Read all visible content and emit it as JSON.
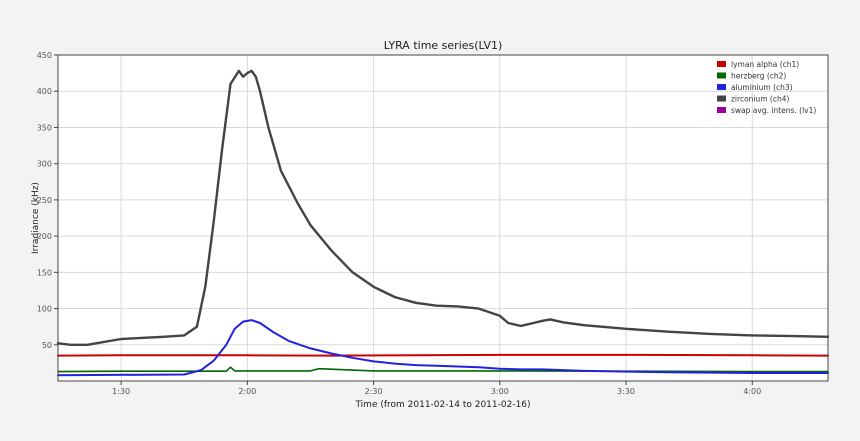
{
  "chart_data": {
    "type": "line",
    "title": "LYRA time series(LV1)",
    "xlabel": "Time (from 2011-02-14 to 2011-02-16)",
    "ylabel": "Irradiance (kHz)",
    "xlim": [
      "01:15",
      "04:18"
    ],
    "ylim": [
      0,
      450
    ],
    "x_ticks": [
      "1:30",
      "2:00",
      "2:30",
      "3:00",
      "3:30",
      "4:00"
    ],
    "y_ticks": [
      50,
      100,
      150,
      200,
      250,
      300,
      350,
      400,
      450
    ],
    "grid": true,
    "legend_position": "top-right",
    "series": [
      {
        "name": "lyman alpha (ch1)",
        "color": "#cc0000",
        "x": [
          "01:15",
          "01:30",
          "02:00",
          "02:20",
          "02:40",
          "03:00",
          "03:30",
          "04:00",
          "04:18"
        ],
        "values": [
          35,
          35.5,
          35.5,
          35,
          35.5,
          36,
          36,
          35.5,
          35
        ]
      },
      {
        "name": "herzberg (ch2)",
        "color": "#006600",
        "x": [
          "01:15",
          "01:30",
          "01:55",
          "01:56",
          "01:57",
          "02:00",
          "02:15",
          "02:17",
          "02:30",
          "03:00",
          "03:30",
          "04:00",
          "04:18"
        ],
        "values": [
          13,
          13.5,
          13.5,
          19,
          14,
          14,
          14,
          17,
          14,
          14,
          13.5,
          13,
          13
        ]
      },
      {
        "name": "aluminium (ch3)",
        "color": "#2222dd",
        "x": [
          "01:15",
          "01:45",
          "01:49",
          "01:52",
          "01:55",
          "01:57",
          "01:59",
          "02:01",
          "02:03",
          "02:06",
          "02:10",
          "02:15",
          "02:20",
          "02:25",
          "02:30",
          "02:35",
          "02:40",
          "02:45",
          "02:50",
          "02:55",
          "03:00",
          "03:05",
          "03:10",
          "03:20",
          "03:40",
          "04:00",
          "04:18"
        ],
        "values": [
          8,
          9,
          15,
          28,
          50,
          72,
          82,
          84,
          80,
          68,
          55,
          45,
          38,
          32,
          27,
          24,
          22,
          21,
          20,
          19,
          17,
          16,
          16,
          14,
          12,
          11,
          11
        ]
      },
      {
        "name": "zirconium (ch4)",
        "color": "#444444",
        "x": [
          "01:15",
          "01:18",
          "01:22",
          "01:30",
          "01:40",
          "01:45",
          "01:48",
          "01:50",
          "01:52",
          "01:54",
          "01:56",
          "01:58",
          "01:59",
          "02:00",
          "02:01",
          "02:02",
          "02:03",
          "02:05",
          "02:08",
          "02:12",
          "02:15",
          "02:20",
          "02:25",
          "02:30",
          "02:35",
          "02:40",
          "02:45",
          "02:50",
          "02:55",
          "03:00",
          "03:02",
          "03:05",
          "03:08",
          "03:10",
          "03:12",
          "03:15",
          "03:20",
          "03:30",
          "03:40",
          "03:50",
          "04:00",
          "04:10",
          "04:18"
        ],
        "values": [
          52,
          50,
          50,
          58,
          61,
          63,
          75,
          130,
          220,
          320,
          410,
          428,
          420,
          425,
          428,
          420,
          400,
          350,
          290,
          245,
          215,
          180,
          150,
          130,
          116,
          108,
          104,
          103,
          100,
          90,
          80,
          76,
          80,
          83,
          85,
          81,
          77,
          72,
          68,
          65,
          63,
          62,
          61
        ]
      },
      {
        "name": "swap avg. intens. (lv1)",
        "color": "#990099",
        "x": [],
        "values": []
      }
    ]
  }
}
